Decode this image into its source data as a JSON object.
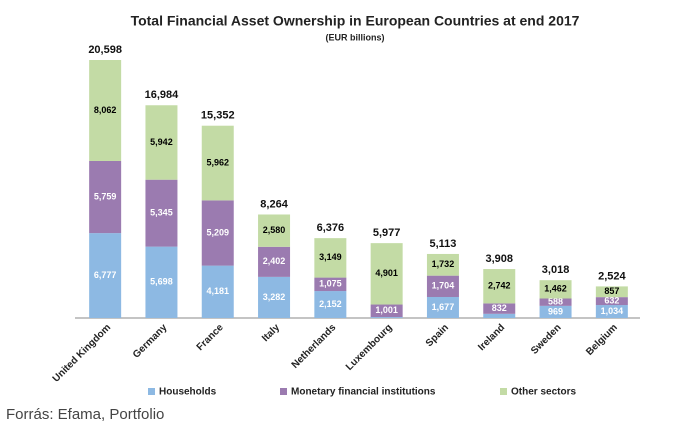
{
  "chart_data": {
    "type": "stacked_bar",
    "title": "Total Financial Asset Ownership in European Countries at end 2017",
    "subtitle": "(EUR billions)",
    "categories": [
      "United Kingdom",
      "Germany",
      "France",
      "Italy",
      "Netherlands",
      "Luxembourg",
      "Spain",
      "Ireland",
      "Sweden",
      "Belgium"
    ],
    "series": [
      {
        "name": "Households",
        "color": "#8db9e3",
        "label_color": "#ffffff",
        "values": [
          6777,
          5698,
          4181,
          3282,
          2152,
          75,
          1677,
          334,
          969,
          1034
        ],
        "value_labels": [
          "6,777",
          "5,698",
          "4,181",
          "3,282",
          "2,152",
          null,
          "1,677",
          null,
          "969",
          "1,034"
        ]
      },
      {
        "name": "Monetary financial institutions",
        "color": "#9b7bb0",
        "label_color": "#ffffff",
        "values": [
          5759,
          5345,
          5209,
          2402,
          1075,
          1001,
          1704,
          832,
          588,
          632
        ],
        "value_labels": [
          "5,759",
          "5,345",
          "5,209",
          "2,402",
          "1,075",
          "1,001",
          "1,704",
          "832",
          "588",
          "632"
        ]
      },
      {
        "name": "Other sectors",
        "color": "#c3dba5",
        "label_color": "#000000",
        "values": [
          8062,
          5942,
          5962,
          2580,
          3149,
          4901,
          1732,
          2742,
          1462,
          857
        ],
        "value_labels": [
          "8,062",
          "5,942",
          "5,962",
          "2,580",
          "3,149",
          "4,901",
          "1,732",
          "2,742",
          "1,462",
          "857"
        ]
      }
    ],
    "totals": [
      20598,
      16984,
      15352,
      8264,
      6376,
      5977,
      5113,
      3908,
      3018,
      2524
    ],
    "totals_labels": [
      "20,598",
      "16,984",
      "15,352",
      "8,264",
      "6,376",
      "5,977",
      "5,113",
      "3,908",
      "3,018",
      "2,524"
    ],
    "legend": "bottom",
    "source": "Forrás: Efama, Portfolio"
  }
}
